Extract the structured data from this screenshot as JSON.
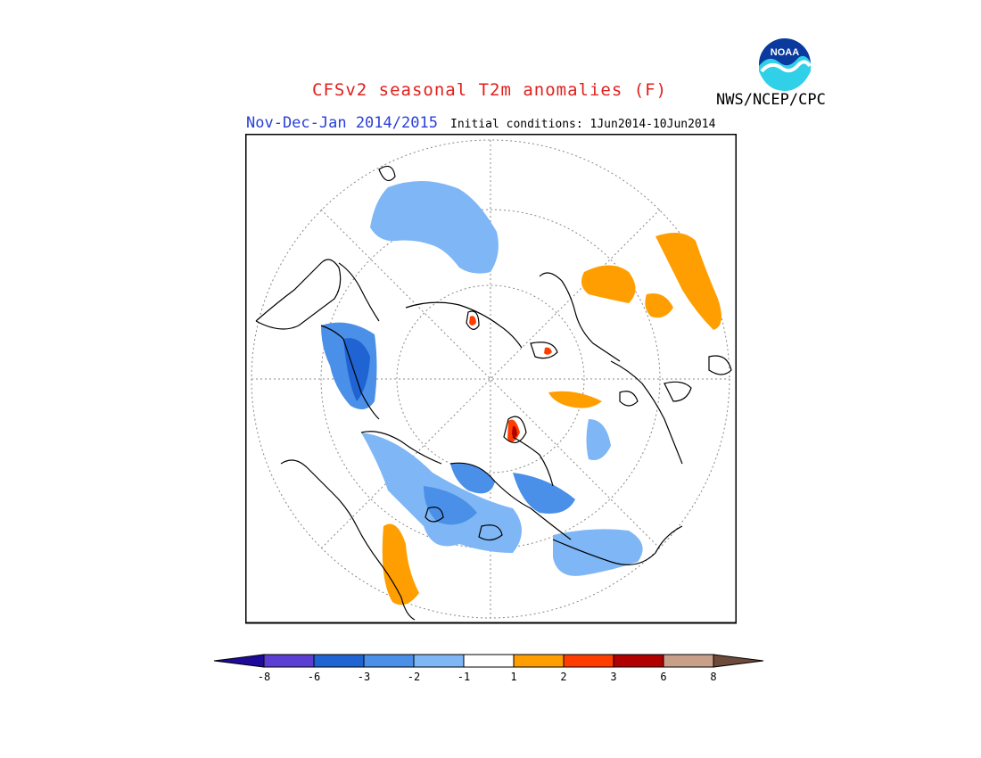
{
  "header": {
    "title": "CFSv2 seasonal T2m anomalies (F)",
    "period": "Nov-Dec-Jan 2014/2015",
    "initial_conditions": "Initial conditions: 1Jun2014-10Jun2014",
    "agency": "NWS/NCEP/CPC",
    "logo_text": "NOAA"
  },
  "colorbar": {
    "colors": [
      "#1e0a9a",
      "#5a3fd2",
      "#1f64d2",
      "#4a8fe8",
      "#7fb6f5",
      "#ffffff",
      "#ff9e00",
      "#ff3d00",
      "#b00000",
      "#c8a08a",
      "#6e4a3a"
    ],
    "ticks": [
      "-8",
      "-6",
      "-3",
      "-2",
      "-1",
      "1",
      "2",
      "3",
      "6",
      "8"
    ]
  },
  "palette": {
    "cold1": "#7fb6f5",
    "cold2": "#4a8fe8",
    "cold3": "#1f64d2",
    "warm1": "#ff9e00",
    "warm2": "#ff3d00",
    "warm3": "#b00000"
  }
}
